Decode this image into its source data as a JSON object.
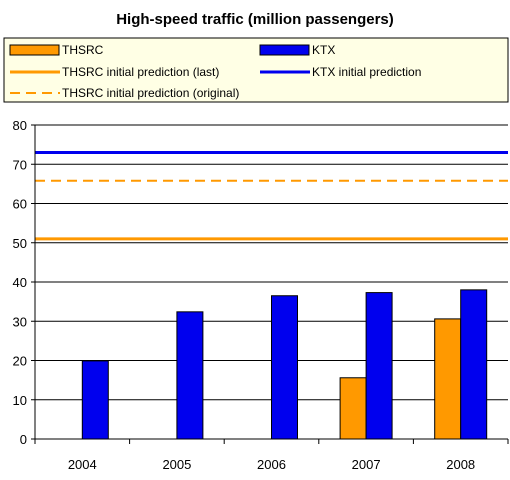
{
  "chart_data": {
    "type": "bar",
    "title": "High-speed traffic (million passengers)",
    "categories": [
      "2004",
      "2005",
      "2006",
      "2007",
      "2008"
    ],
    "series": [
      {
        "name": "THSRC",
        "values": [
          null,
          null,
          null,
          15.6,
          30.6
        ],
        "color": "#ff9900"
      },
      {
        "name": "KTX",
        "values": [
          19.9,
          32.4,
          36.5,
          37.3,
          38.0
        ],
        "color": "#0000ee"
      }
    ],
    "reference_lines": [
      {
        "name": "THSRC initial prediction (last)",
        "value": 51.0,
        "color": "#ff9900",
        "style": "solid"
      },
      {
        "name": "KTX initial prediction",
        "value": 73.0,
        "color": "#0000ee",
        "style": "solid"
      },
      {
        "name": "THSRC initial prediction (original)",
        "value": 65.8,
        "color": "#ff9900",
        "style": "dashed"
      }
    ],
    "ylim": [
      0,
      80
    ],
    "yticks": [
      0,
      10,
      20,
      30,
      40,
      50,
      60,
      70,
      80
    ],
    "grid": true,
    "legend_position": "top",
    "legend": [
      {
        "name": "THSRC",
        "marker": "bar",
        "color": "#ff9900"
      },
      {
        "name": "KTX",
        "marker": "bar",
        "color": "#0000ee"
      },
      {
        "name": "THSRC initial prediction (last)",
        "marker": "line",
        "color": "#ff9900"
      },
      {
        "name": "KTX initial prediction",
        "marker": "line",
        "color": "#0000ee"
      },
      {
        "name": "THSRC initial prediction (original)",
        "marker": "dashed-line",
        "color": "#ff9900"
      }
    ],
    "colors": {
      "legend_background": "#ffffe5",
      "plot_background": "#ffffff",
      "grid": "#000000"
    }
  }
}
